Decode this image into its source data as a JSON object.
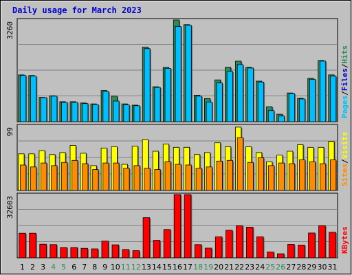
{
  "chart_data": {
    "type": "bar",
    "title": "Daily usage for March 2023",
    "categories": [
      "1",
      "2",
      "3",
      "4",
      "5",
      "6",
      "7",
      "8",
      "9",
      "10",
      "11",
      "12",
      "13",
      "14",
      "15",
      "16",
      "17",
      "18",
      "19",
      "20",
      "21",
      "22",
      "23",
      "24",
      "25",
      "26",
      "27",
      "28",
      "29",
      "30",
      "31"
    ],
    "weekend_categories": [
      "4",
      "5",
      "11",
      "12",
      "18",
      "19",
      "25",
      "26"
    ],
    "colors": {
      "hits": "#2e8b57",
      "files": "#00bfff",
      "pages": "#0080ff",
      "visits": "#ffff00",
      "sites": "#ff8c00",
      "kbytes": "#ff0000",
      "title": "#0000cc",
      "weekday_label": "#000000",
      "weekend_label": "#2e8b57"
    },
    "panels": [
      {
        "id": "top",
        "ymax_label": "3260",
        "ymax": 3260,
        "legend": [
          {
            "text": "Hits",
            "color": "#2e8b57"
          },
          {
            "text": "/",
            "color": "#000000"
          },
          {
            "text": "Files",
            "color": "#0000cc"
          },
          {
            "text": "/",
            "color": "#000000"
          },
          {
            "text": "Pages",
            "color": "#00bfff"
          }
        ],
        "series": [
          {
            "name": "Hits",
            "color": "#2e8b57",
            "values": [
              1500,
              1480,
              780,
              830,
              640,
              640,
              600,
              570,
              1000,
              820,
              570,
              530,
              2390,
              1120,
              1740,
              3260,
              3110,
              850,
              740,
              1340,
              1740,
              1940,
              1740,
              1300,
              480,
              240,
              920,
              750,
              1390,
              1960,
              1500
            ]
          },
          {
            "name": "Files",
            "color": "#00bfff",
            "values": [
              1480,
              1460,
              770,
              820,
              620,
              620,
              580,
              550,
              970,
              660,
              540,
              510,
              2340,
              1100,
              1710,
              3050,
              3090,
              820,
              630,
              1240,
              1610,
              1830,
              1720,
              1270,
              360,
              180,
              900,
              730,
              1360,
              1940,
              1460
            ]
          }
        ]
      },
      {
        "id": "middle",
        "ymax_label": "99",
        "ymax": 99,
        "legend": [
          {
            "text": "Visits",
            "color": "#ffff00"
          },
          {
            "text": "/",
            "color": "#000000"
          },
          {
            "text": "Sites",
            "color": "#ff8c00"
          }
        ],
        "series": [
          {
            "name": "Visits",
            "color": "#ffff00",
            "values": [
              56,
              56,
              61,
              55,
              58,
              69,
              57,
              38,
              65,
              67,
              40,
              68,
              78,
              60,
              71,
              66,
              66,
              55,
              58,
              73,
              67,
              97,
              67,
              58,
              44,
              54,
              60,
              70,
              66,
              66,
              75
            ]
          },
          {
            "name": "Sites",
            "color": "#ff8c00",
            "values": [
              39,
              36,
              42,
              38,
              43,
              46,
              41,
              32,
              42,
              42,
              34,
              38,
              34,
              32,
              44,
              40,
              39,
              34,
              36,
              45,
              46,
              81,
              43,
              50,
              38,
              42,
              41,
              47,
              44,
              41,
              47
            ]
          }
        ]
      },
      {
        "id": "bottom",
        "ymax_label": "32603",
        "ymax": 32603,
        "legend": [
          {
            "text": "KBytes",
            "color": "#ff0000"
          }
        ],
        "series": [
          {
            "name": "KBytes",
            "color": "#ff0000",
            "values": [
              12700,
              12700,
              7000,
              6800,
              5300,
              5300,
              4900,
              4600,
              8600,
              6700,
              4300,
              3700,
              20700,
              9000,
              14600,
              32603,
              32603,
              6800,
              5000,
              10800,
              14200,
              16500,
              15800,
              10800,
              3000,
              2100,
              6900,
              6600,
              12800,
              16600,
              13200
            ]
          }
        ]
      }
    ]
  }
}
